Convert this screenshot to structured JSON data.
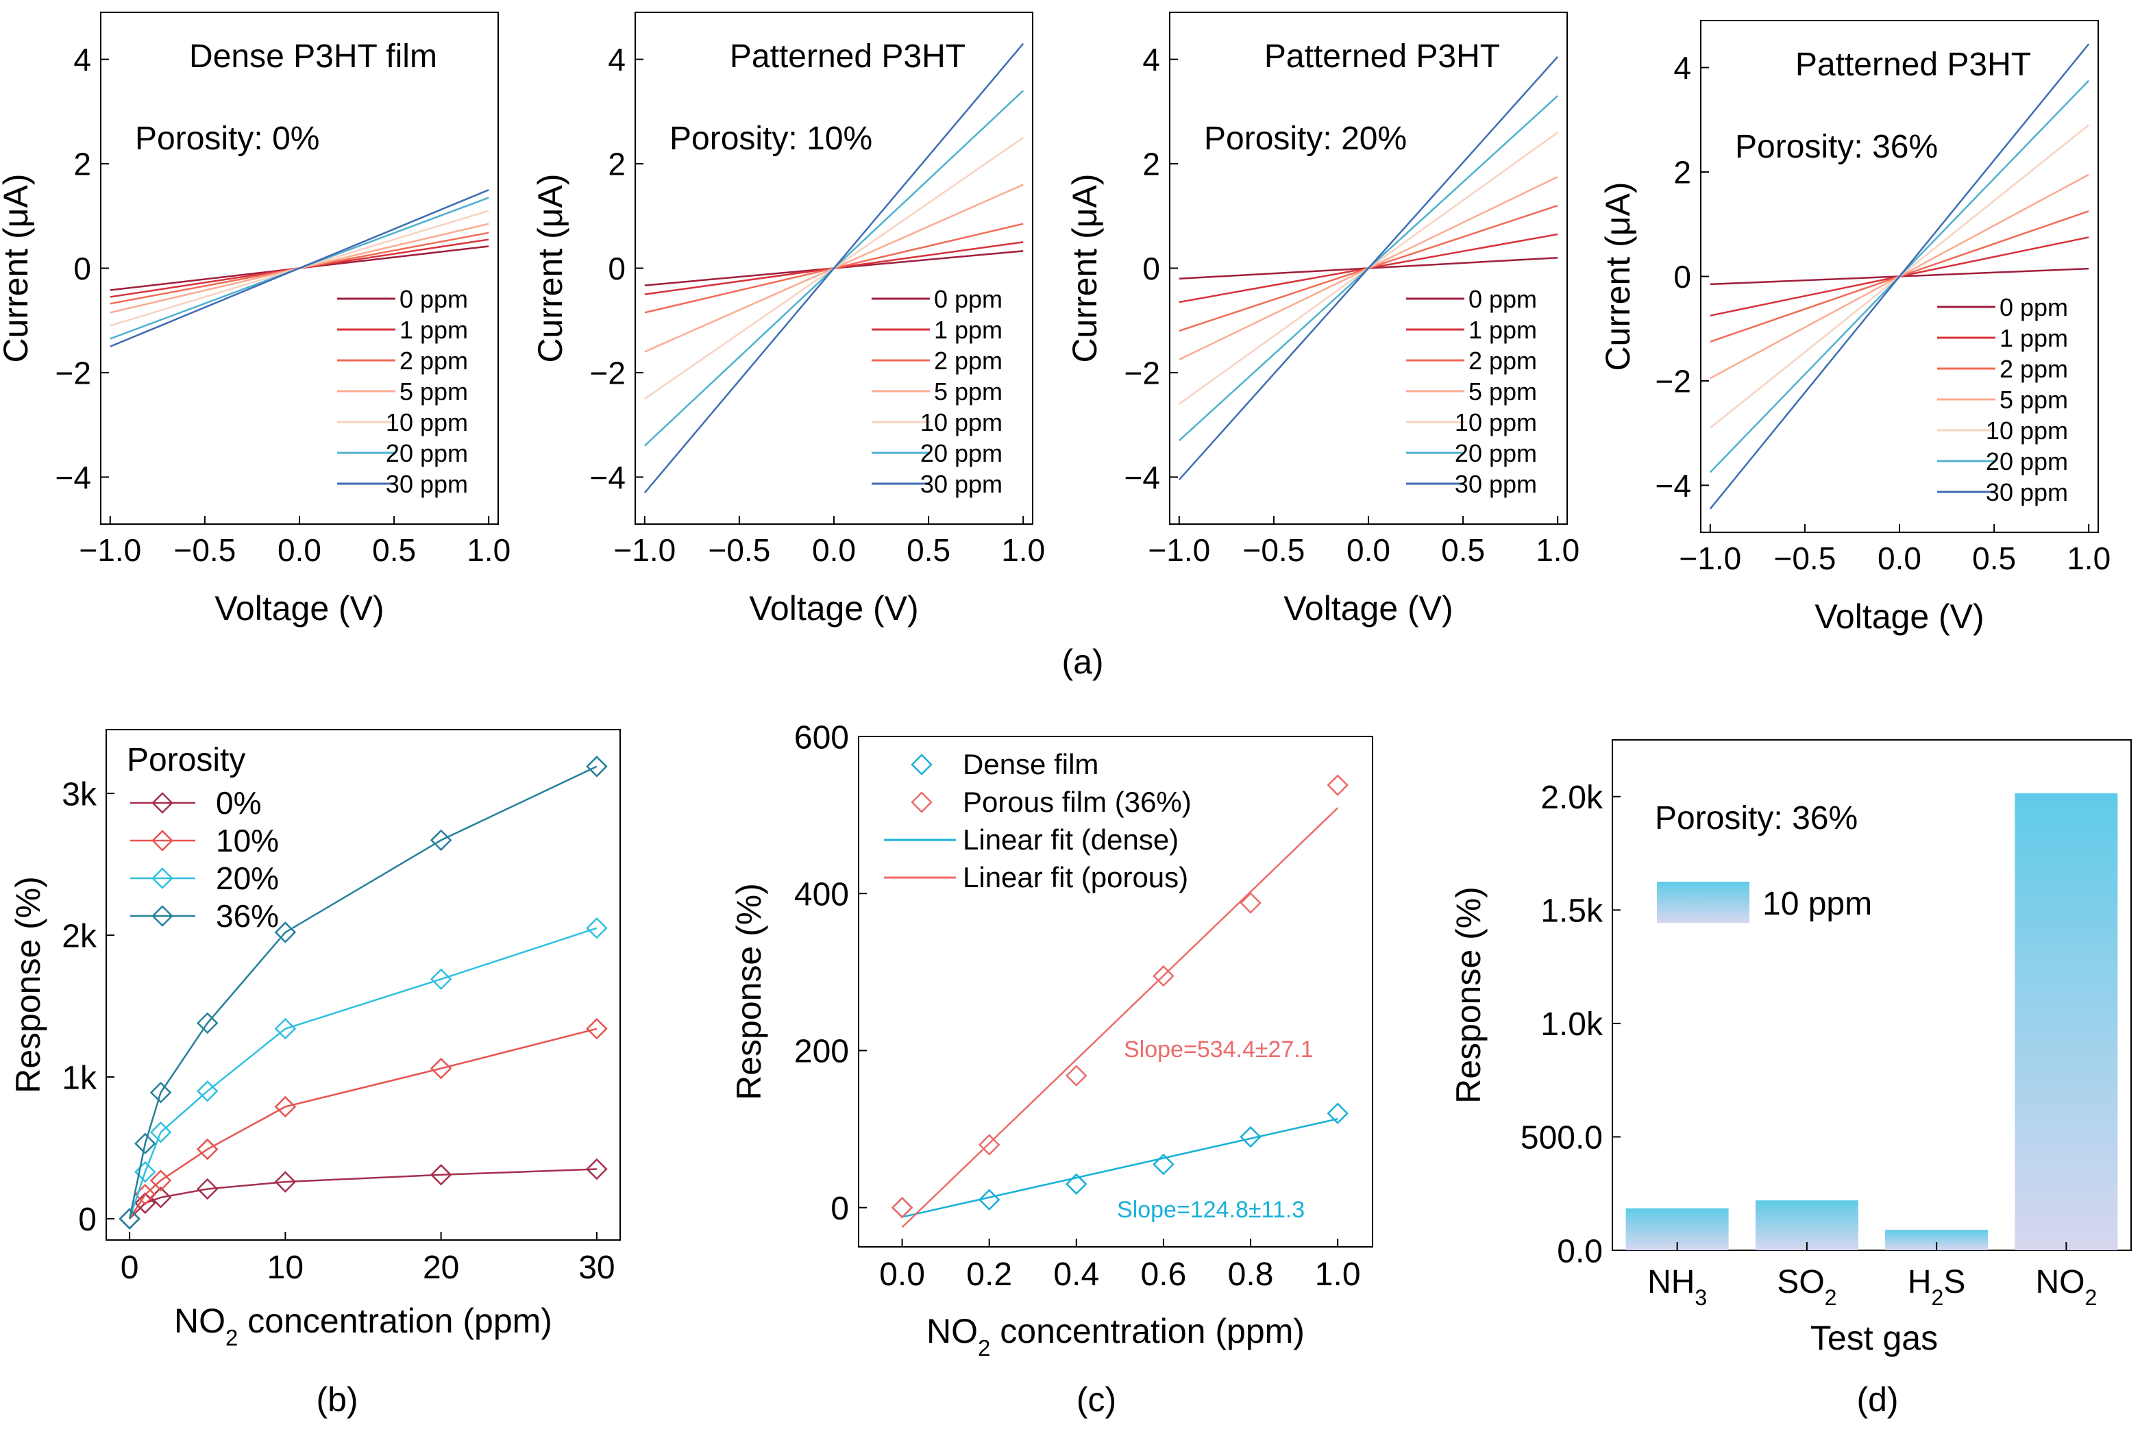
{
  "figure_labels": [
    "(a)",
    "(b)",
    "(c)",
    "(d)"
  ],
  "colors": {
    "0 ppm": "#a01e3c",
    "1 ppm": "#d8313a",
    "2 ppm": "#f26b55",
    "5 ppm": "#fbab90",
    "10 ppm": "#f7d3c2",
    "20 ppm": "#4fb0cf",
    "30 ppm": "#3f6db3",
    "por0": "#a5304e",
    "por10": "#e8534f",
    "por20": "#2fc0e0",
    "por36": "#26809c",
    "dense": "#17b1d8",
    "porous": "#ec6b6b",
    "bar_top": "#5fcbe8",
    "bar_bottom": "#d7d7ef"
  },
  "chart_data": [
    {
      "id": "a1",
      "type": "line",
      "title": "Dense P3HT film",
      "annotation": "Porosity: 0%",
      "xlabel": "Voltage (V)",
      "ylabel": "Current (μA)",
      "xlim": [
        -1.05,
        1.05
      ],
      "ylim": [
        -4.9,
        4.9
      ],
      "xticks": [
        -1.0,
        -0.5,
        0.0,
        0.5,
        1.0
      ],
      "xticklabels": [
        "−1.0",
        "−0.5",
        "0.0",
        "0.5",
        "1.0"
      ],
      "yticks": [
        -4,
        -2,
        0,
        2,
        4
      ],
      "yticklabels": [
        "−4",
        "−2",
        "0",
        "2",
        "4"
      ],
      "x": [
        -1.0,
        1.0
      ],
      "series": [
        {
          "name": "0 ppm",
          "values": [
            -0.42,
            0.42
          ]
        },
        {
          "name": "1 ppm",
          "values": [
            -0.55,
            0.55
          ]
        },
        {
          "name": "2 ppm",
          "values": [
            -0.68,
            0.68
          ]
        },
        {
          "name": "5 ppm",
          "values": [
            -0.85,
            0.85
          ]
        },
        {
          "name": "10 ppm",
          "values": [
            -1.1,
            1.1
          ]
        },
        {
          "name": "20 ppm",
          "values": [
            -1.35,
            1.35
          ]
        },
        {
          "name": "30 ppm",
          "values": [
            -1.5,
            1.5
          ]
        }
      ],
      "legend": [
        "0 ppm",
        "1 ppm",
        "2 ppm",
        "5 ppm",
        "10 ppm",
        "20 ppm",
        "30 ppm"
      ]
    },
    {
      "id": "a2",
      "type": "line",
      "title": "Patterned P3HT",
      "annotation": "Porosity: 10%",
      "xlabel": "Voltage (V)",
      "ylabel": "Current (μA)",
      "xlim": [
        -1.05,
        1.05
      ],
      "ylim": [
        -4.9,
        4.9
      ],
      "xticks": [
        -1.0,
        -0.5,
        0.0,
        0.5,
        1.0
      ],
      "xticklabels": [
        "−1.0",
        "−0.5",
        "0.0",
        "0.5",
        "1.0"
      ],
      "yticks": [
        -4,
        -2,
        0,
        2,
        4
      ],
      "yticklabels": [
        "−4",
        "−2",
        "0",
        "2",
        "4"
      ],
      "x": [
        -1.0,
        1.0
      ],
      "series": [
        {
          "name": "0 ppm",
          "values": [
            -0.33,
            0.33
          ]
        },
        {
          "name": "1 ppm",
          "values": [
            -0.5,
            0.5
          ]
        },
        {
          "name": "2 ppm",
          "values": [
            -0.85,
            0.85
          ]
        },
        {
          "name": "5 ppm",
          "values": [
            -1.6,
            1.6
          ]
        },
        {
          "name": "10 ppm",
          "values": [
            -2.5,
            2.5
          ]
        },
        {
          "name": "20 ppm",
          "values": [
            -3.4,
            3.4
          ]
        },
        {
          "name": "30 ppm",
          "values": [
            -4.3,
            4.3
          ]
        }
      ],
      "legend": [
        "0 ppm",
        "1 ppm",
        "2 ppm",
        "5 ppm",
        "10 ppm",
        "20 ppm",
        "30 ppm"
      ]
    },
    {
      "id": "a3",
      "type": "line",
      "title": "Patterned P3HT",
      "annotation": "Porosity: 20%",
      "xlabel": "Voltage (V)",
      "ylabel": "Current (μA)",
      "xlim": [
        -1.05,
        1.05
      ],
      "ylim": [
        -4.9,
        4.9
      ],
      "xticks": [
        -1.0,
        -0.5,
        0.0,
        0.5,
        1.0
      ],
      "xticklabels": [
        "−1.0",
        "−0.5",
        "0.0",
        "0.5",
        "1.0"
      ],
      "yticks": [
        -4,
        -2,
        0,
        2,
        4
      ],
      "yticklabels": [
        "−4",
        "−2",
        "0",
        "2",
        "4"
      ],
      "x": [
        -1.0,
        1.0
      ],
      "series": [
        {
          "name": "0 ppm",
          "values": [
            -0.2,
            0.2
          ]
        },
        {
          "name": "1 ppm",
          "values": [
            -0.65,
            0.65
          ]
        },
        {
          "name": "2 ppm",
          "values": [
            -1.2,
            1.2
          ]
        },
        {
          "name": "5 ppm",
          "values": [
            -1.75,
            1.75
          ]
        },
        {
          "name": "10 ppm",
          "values": [
            -2.6,
            2.6
          ]
        },
        {
          "name": "20 ppm",
          "values": [
            -3.3,
            3.3
          ]
        },
        {
          "name": "30 ppm",
          "values": [
            -4.05,
            4.05
          ]
        }
      ],
      "legend": [
        "0 ppm",
        "1 ppm",
        "2 ppm",
        "5 ppm",
        "10 ppm",
        "20 ppm",
        "30 ppm"
      ]
    },
    {
      "id": "a4",
      "type": "line",
      "title": "Patterned P3HT",
      "annotation": "Porosity: 36%",
      "xlabel": "Voltage (V)",
      "ylabel": "Current (μA)",
      "xlim": [
        -1.05,
        1.05
      ],
      "ylim": [
        -4.9,
        4.9
      ],
      "xticks": [
        -1.0,
        -0.5,
        0.0,
        0.5,
        1.0
      ],
      "xticklabels": [
        "−1.0",
        "−0.5",
        "0.0",
        "0.5",
        "1.0"
      ],
      "yticks": [
        -4,
        -2,
        0,
        2,
        4
      ],
      "yticklabels": [
        "−4",
        "−2",
        "0",
        "2",
        "4"
      ],
      "x": [
        -1.0,
        1.0
      ],
      "series": [
        {
          "name": "0 ppm",
          "values": [
            -0.15,
            0.15
          ]
        },
        {
          "name": "1 ppm",
          "values": [
            -0.75,
            0.75
          ]
        },
        {
          "name": "2 ppm",
          "values": [
            -1.25,
            1.25
          ]
        },
        {
          "name": "5 ppm",
          "values": [
            -1.95,
            1.95
          ]
        },
        {
          "name": "10 ppm",
          "values": [
            -2.9,
            2.9
          ]
        },
        {
          "name": "20 ppm",
          "values": [
            -3.75,
            3.75
          ]
        },
        {
          "name": "30 ppm",
          "values": [
            -4.45,
            4.45
          ]
        }
      ],
      "legend": [
        "0 ppm",
        "1 ppm",
        "2 ppm",
        "5 ppm",
        "10 ppm",
        "20 ppm",
        "30 ppm"
      ]
    },
    {
      "id": "b",
      "type": "line",
      "legend_title": "Porosity",
      "xlabel": "NO",
      "xlabel_sub": "2",
      "xlabel_rest": " concentration (ppm)",
      "ylabel": "Response (%)",
      "xlim": [
        -1.5,
        31.5
      ],
      "ylim": [
        -150,
        3450
      ],
      "xticks": [
        0,
        10,
        20,
        30
      ],
      "xticklabels": [
        "0",
        "10",
        "20",
        "30"
      ],
      "yticks": [
        0,
        1000,
        2000,
        3000
      ],
      "yticklabels": [
        "0",
        "1k",
        "2k",
        "3k"
      ],
      "x": [
        0,
        1,
        2,
        5,
        10,
        20,
        30
      ],
      "series": [
        {
          "name": "0%",
          "values": [
            0,
            110,
            150,
            210,
            260,
            310,
            350
          ],
          "x": [
            0,
            1,
            2,
            5,
            10,
            20,
            30
          ]
        },
        {
          "name": "10%",
          "values": [
            0,
            170,
            270,
            490,
            790,
            1060,
            1340
          ],
          "x": [
            0,
            1,
            2,
            5,
            10,
            20,
            30
          ]
        },
        {
          "name": "20%",
          "values": [
            0,
            330,
            610,
            900,
            1340,
            1690,
            2050
          ],
          "x": [
            0,
            1,
            2,
            5,
            10,
            20,
            30
          ]
        },
        {
          "name": "36%",
          "values": [
            0,
            530,
            890,
            1380,
            2020,
            2670,
            3190
          ],
          "x": [
            0,
            1,
            2,
            5,
            10,
            20,
            30
          ]
        }
      ],
      "legend": [
        "0%",
        "10%",
        "20%",
        "36%"
      ]
    },
    {
      "id": "c",
      "type": "scatter",
      "xlabel": "NO",
      "xlabel_sub": "2",
      "xlabel_rest": " concentration (ppm)",
      "ylabel": "Response (%)",
      "xlim": [
        -0.1,
        1.08
      ],
      "ylim": [
        -50,
        600
      ],
      "xticks": [
        0.0,
        0.2,
        0.4,
        0.6,
        0.8,
        1.0
      ],
      "xticklabels": [
        "0.0",
        "0.2",
        "0.4",
        "0.6",
        "0.8",
        "1.0"
      ],
      "yticks": [
        0,
        200,
        400,
        600
      ],
      "yticklabels": [
        "0",
        "200",
        "400",
        "600"
      ],
      "series": [
        {
          "name": "Dense film",
          "x": [
            0.0,
            0.2,
            0.4,
            0.6,
            0.8,
            1.0
          ],
          "values": [
            0,
            10,
            30,
            55,
            90,
            120
          ]
        },
        {
          "name": "Porous film (36%)",
          "x": [
            0.0,
            0.2,
            0.4,
            0.6,
            0.8,
            1.0
          ],
          "values": [
            0,
            80,
            168,
            295,
            388,
            538
          ]
        }
      ],
      "fits": [
        {
          "name": "Linear fit (dense)",
          "x": [
            0.0,
            1.0
          ],
          "values": [
            -12,
            113
          ]
        },
        {
          "name": "Linear fit (porous)",
          "x": [
            0.0,
            1.0
          ],
          "values": [
            -25,
            509
          ]
        }
      ],
      "annotations": [
        "Slope=534.4±27.1",
        "Slope=124.8±11.3"
      ],
      "legend": [
        "Dense film",
        "Porous film (36%)",
        "Linear fit (dense)",
        "Linear fit (porous)"
      ]
    },
    {
      "id": "d",
      "type": "bar",
      "annotation": "Porosity: 36%",
      "legend": [
        "10 ppm"
      ],
      "xlabel": "Test gas",
      "ylabel": "Response (%)",
      "categories": [
        {
          "base": "NH",
          "sub": "3",
          "post": ""
        },
        {
          "base": "SO",
          "sub": "2",
          "post": ""
        },
        {
          "base": "H",
          "sub": "2",
          "post": "S"
        },
        {
          "base": "NO",
          "sub": "2",
          "post": ""
        }
      ],
      "values": [
        185,
        220,
        90,
        2015
      ],
      "ylim": [
        0,
        2250
      ],
      "yticks": [
        0,
        500,
        1000,
        1500,
        2000
      ],
      "yticklabels": [
        "0.0",
        "500.0",
        "1.0k",
        "1.5k",
        "2.0k"
      ]
    }
  ]
}
